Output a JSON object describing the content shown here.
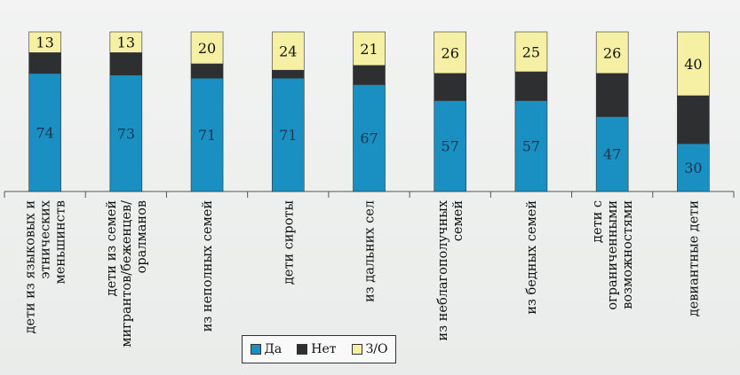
{
  "chart_data": {
    "type": "bar",
    "stacked": true,
    "normalized": true,
    "categories": [
      "дети из языковых и этнических меньшинств",
      "дети из семей мигрантов/беженцев/оралманов",
      "из неполных семей",
      "дети сироты",
      "из дальних сел",
      "из неблагополучных семей",
      "из бедных семей",
      "дети с ограниченными возможностями",
      "девиантные дети"
    ],
    "category_lines": [
      [
        "дети из языковых и",
        "этнических",
        "меньшинств"
      ],
      [
        "дети из семей",
        "мигрантов/беженцев/",
        "оралманов"
      ],
      [
        "из неполных семей"
      ],
      [
        "дети сироты"
      ],
      [
        "из дальних сел"
      ],
      [
        "из неблагополучных",
        "семей"
      ],
      [
        "из бедных семей"
      ],
      [
        "дети с",
        "ограниченными",
        "возможностями"
      ],
      [
        "девиантные дети"
      ]
    ],
    "series": [
      {
        "name": "Да",
        "values": [
          74,
          73,
          71,
          71,
          67,
          57,
          57,
          47,
          30
        ],
        "color": "#1a8fc2",
        "label_color": "#1e3550"
      },
      {
        "name": "Нет",
        "values": [
          13,
          14,
          9,
          5,
          12,
          17,
          18,
          27,
          30
        ],
        "color": "#2d2f31",
        "label_color": "#ffffff"
      },
      {
        "name": "З/О",
        "values": [
          13,
          13,
          20,
          24,
          21,
          26,
          25,
          26,
          40
        ],
        "color": "#f5f0a4",
        "label_color": "#111111"
      }
    ],
    "shown_labels": [
      "Да",
      "З/О"
    ],
    "legend_position": "bottom",
    "grid": false
  },
  "legend": {
    "items": [
      {
        "label": "Да",
        "color": "#1a8fc2"
      },
      {
        "label": "Нет",
        "color": "#2d2f31"
      },
      {
        "label": "З/О",
        "color": "#f5f0a4"
      }
    ]
  }
}
